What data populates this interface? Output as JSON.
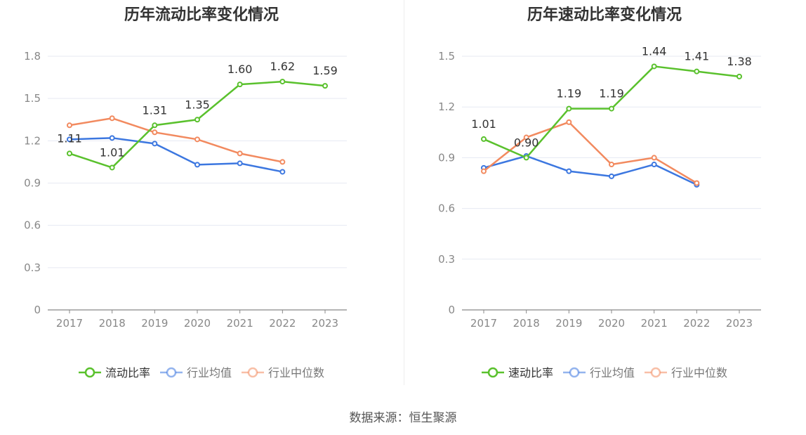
{
  "source_text": "数据来源：恒生聚源",
  "chart_data": [
    {
      "type": "line",
      "title": "历年流动比率变化情况",
      "categories": [
        "2017",
        "2018",
        "2019",
        "2020",
        "2021",
        "2022",
        "2023"
      ],
      "ylim": [
        0,
        1.8
      ],
      "yticks": [
        "0",
        "0.3",
        "0.6",
        "0.9",
        "1.2",
        "1.5",
        "1.8"
      ],
      "grid": true,
      "legend_position": "bottom",
      "series": [
        {
          "name": "流动比率",
          "color": "#5ac12d",
          "values": [
            1.11,
            1.01,
            1.31,
            1.35,
            1.6,
            1.62,
            1.59
          ],
          "labels": [
            "1.11",
            "1.01",
            "1.31",
            "1.35",
            "1.60",
            "1.62",
            "1.59"
          ]
        },
        {
          "name": "行业均值",
          "color": "#3c77e0",
          "values": [
            1.21,
            1.22,
            1.18,
            1.03,
            1.04,
            0.98,
            null
          ]
        },
        {
          "name": "行业中位数",
          "color": "#f28a5f",
          "values": [
            1.31,
            1.36,
            1.26,
            1.21,
            1.11,
            1.05,
            null
          ]
        }
      ]
    },
    {
      "type": "line",
      "title": "历年速动比率变化情况",
      "categories": [
        "2017",
        "2018",
        "2019",
        "2020",
        "2021",
        "2022",
        "2023"
      ],
      "ylim": [
        0,
        1.5
      ],
      "yticks": [
        "0",
        "0.3",
        "0.6",
        "0.9",
        "1.2",
        "1.5"
      ],
      "grid": true,
      "legend_position": "bottom",
      "series": [
        {
          "name": "速动比率",
          "color": "#5ac12d",
          "values": [
            1.01,
            0.9,
            1.19,
            1.19,
            1.44,
            1.41,
            1.38
          ],
          "labels": [
            "1.01",
            "0.90",
            "1.19",
            "1.19",
            "1.44",
            "1.41",
            "1.38"
          ]
        },
        {
          "name": "行业均值",
          "color": "#3c77e0",
          "values": [
            0.84,
            0.91,
            0.82,
            0.79,
            0.86,
            0.74,
            null
          ]
        },
        {
          "name": "行业中位数",
          "color": "#f28a5f",
          "values": [
            0.82,
            1.02,
            1.11,
            0.86,
            0.9,
            0.75,
            null
          ]
        }
      ]
    }
  ]
}
